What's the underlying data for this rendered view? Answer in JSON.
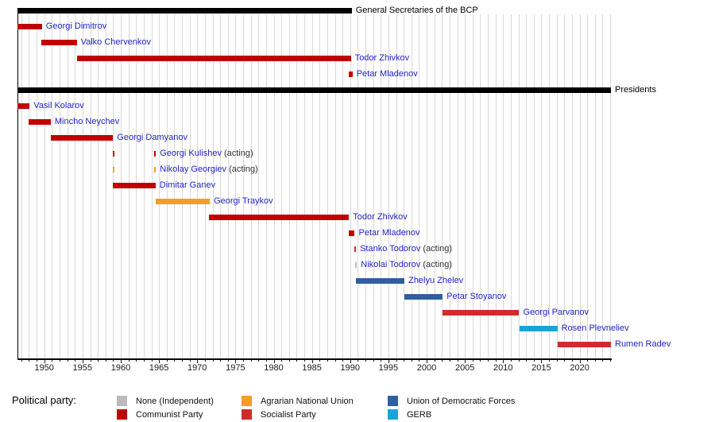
{
  "chart_data": {
    "type": "timeline",
    "title_sections": [
      "General Secretaries of the BCP",
      "Presidents"
    ],
    "axis": {
      "start_year": 1946.5,
      "end_year": 2024.2,
      "minor_tick_interval": 1,
      "major_ticks": [
        1950,
        1955,
        1960,
        1965,
        1970,
        1975,
        1980,
        1985,
        1990,
        1995,
        2000,
        2005,
        2010,
        2015,
        2020
      ],
      "grid": "vertical-yearly"
    },
    "parties": {
      "none": "#bbbbbb",
      "communist": "#c00000",
      "agrarian": "#f49d28",
      "socialist": "#d22a2a",
      "udf": "#2e5f9e",
      "gerb": "#1aa3da"
    },
    "rows": [
      {
        "kind": "section",
        "label": "General Secretaries of the BCP",
        "start": 1946.5,
        "end": 1990.2
      },
      {
        "kind": "bar",
        "name": "Georgi Dimitrov",
        "suffix": "",
        "party": "communist",
        "start": 1946.5,
        "end": 1949.7
      },
      {
        "kind": "bar",
        "name": "Valko Chervenkov",
        "suffix": "",
        "party": "communist",
        "start": 1949.6,
        "end": 1954.25
      },
      {
        "kind": "bar",
        "name": "Todor Zhivkov",
        "suffix": "",
        "party": "communist",
        "start": 1954.25,
        "end": 1990.1
      },
      {
        "kind": "bar",
        "name": "Petar Mladenov",
        "suffix": "",
        "party": "communist",
        "start": 1989.85,
        "end": 1990.3
      },
      {
        "kind": "section",
        "label": "Presidents",
        "start": 1946.5,
        "end": 2024.1
      },
      {
        "kind": "bar",
        "name": "Vasil Kolarov",
        "suffix": "",
        "party": "communist",
        "start": 1946.5,
        "end": 1948.1
      },
      {
        "kind": "bar",
        "name": "Mincho Neychev",
        "suffix": "",
        "party": "communist",
        "start": 1948.0,
        "end": 1950.85
      },
      {
        "kind": "bar",
        "name": "Georgi Damyanov",
        "suffix": "",
        "party": "communist",
        "start": 1950.85,
        "end": 1959.0
      },
      {
        "kind": "ticks",
        "name": "Georgi Kulishev",
        "suffix": " (acting)",
        "party": "communist",
        "ticks": [
          1958.95,
          1964.4
        ]
      },
      {
        "kind": "ticks",
        "name": "Nikolay Georgiev",
        "suffix": " (acting)",
        "party": "agrarian",
        "ticks": [
          1958.95,
          1964.4
        ]
      },
      {
        "kind": "bar",
        "name": "Dimitar Ganev",
        "suffix": "",
        "party": "communist",
        "start": 1959.0,
        "end": 1964.55
      },
      {
        "kind": "bar",
        "name": "Georgi Traykov",
        "suffix": "",
        "party": "agrarian",
        "start": 1964.55,
        "end": 1971.65
      },
      {
        "kind": "bar",
        "name": "Todor Zhivkov",
        "suffix": "",
        "party": "communist",
        "start": 1971.55,
        "end": 1989.85
      },
      {
        "kind": "bar",
        "name": "Petar Mladenov",
        "suffix": "",
        "party": "communist",
        "start": 1989.85,
        "end": 1990.6
      },
      {
        "kind": "ticks",
        "name": "Stanko Todorov",
        "suffix": " (acting)",
        "party": "socialist",
        "ticks": [
          1990.55
        ]
      },
      {
        "kind": "ticks",
        "name": "Nikolai Todorov",
        "suffix": " (acting)",
        "party": "none",
        "ticks": [
          1990.68
        ]
      },
      {
        "kind": "bar",
        "name": "Zhelyu Zhelev",
        "suffix": "",
        "party": "udf",
        "start": 1990.7,
        "end": 1997.1
      },
      {
        "kind": "bar",
        "name": "Petar Stoyanov",
        "suffix": "",
        "party": "udf",
        "start": 1997.1,
        "end": 2002.1
      },
      {
        "kind": "bar",
        "name": "Georgi Parvanov",
        "suffix": "",
        "party": "socialist",
        "start": 2002.1,
        "end": 2012.1
      },
      {
        "kind": "bar",
        "name": "Rosen Plevneliev",
        "suffix": "",
        "party": "gerb",
        "start": 2012.1,
        "end": 2017.1
      },
      {
        "kind": "bar",
        "name": "Rumen Radev",
        "suffix": "",
        "party": "socialist",
        "start": 2017.1,
        "end": 2024.1
      }
    ]
  },
  "legend": {
    "title": "Political party:",
    "columns": [
      {
        "items": [
          {
            "label": "None (Independent)",
            "party": "none"
          },
          {
            "label": "Communist Party",
            "party": "communist"
          }
        ]
      },
      {
        "items": [
          {
            "label": "Agrarian National Union",
            "party": "agrarian"
          },
          {
            "label": "Socialist Party",
            "party": "socialist"
          }
        ]
      },
      {
        "items": [
          {
            "label": "Union of Democratic Forces",
            "party": "udf"
          },
          {
            "label": "GERB",
            "party": "gerb"
          }
        ]
      }
    ]
  }
}
